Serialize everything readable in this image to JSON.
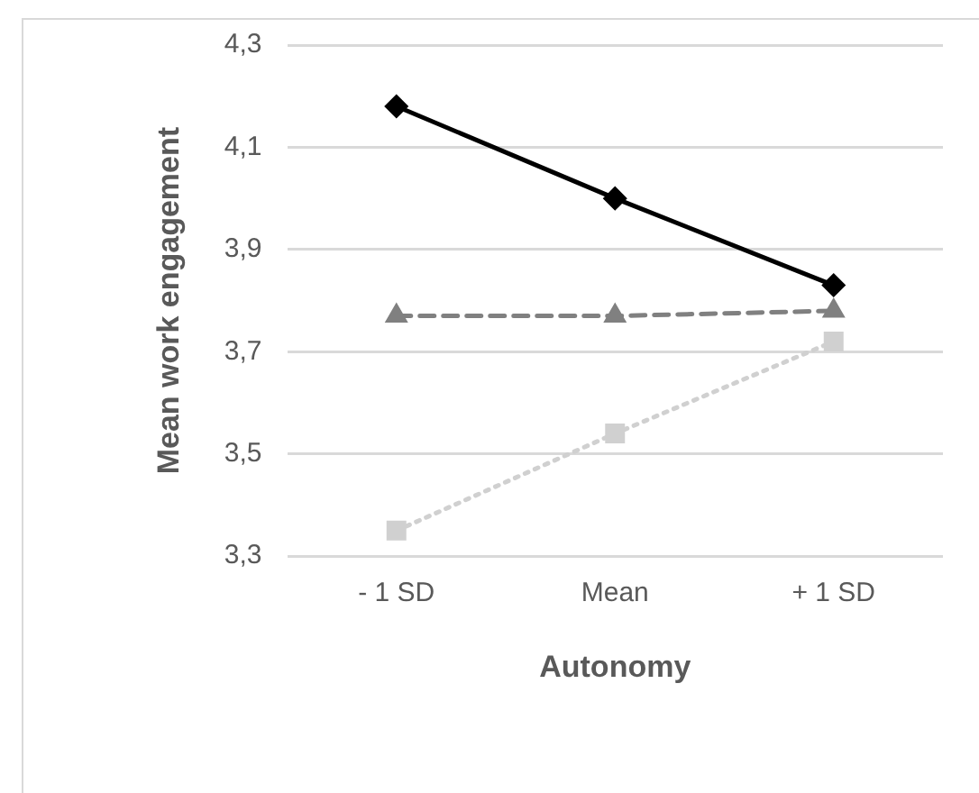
{
  "chart_data": {
    "type": "line",
    "xlabel": "Autonomy",
    "ylabel": "Mean work engagement",
    "categories": [
      "- 1 SD",
      "Mean",
      "+ 1 SD"
    ],
    "series": [
      {
        "color": "#000000",
        "values": [
          4.18,
          4.0,
          3.83
        ],
        "marker": "diamond",
        "line_style": "solid"
      },
      {
        "color": "#808080",
        "values": [
          3.77,
          3.77,
          3.78
        ],
        "marker": "triangle",
        "line_style": "dashed"
      },
      {
        "color": "#d0d0d0",
        "values": [
          3.35,
          3.54,
          3.72
        ],
        "marker": "square",
        "line_style": "dotted"
      }
    ],
    "ylim": [
      3.3,
      4.3
    ],
    "yticks": [
      {
        "value": 3.3,
        "label": "3,3"
      },
      {
        "value": 3.5,
        "label": "3,5"
      },
      {
        "value": 3.7,
        "label": "3,7"
      },
      {
        "value": 3.9,
        "label": "3,9"
      },
      {
        "value": 4.1,
        "label": "4,1"
      },
      {
        "value": 4.3,
        "label": "4,3"
      }
    ],
    "grid": "y",
    "legend": false
  }
}
